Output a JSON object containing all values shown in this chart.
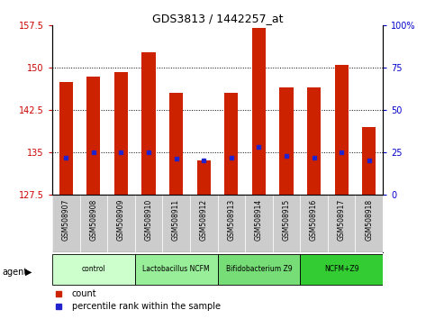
{
  "title": "GDS3813 / 1442257_at",
  "samples": [
    "GSM508907",
    "GSM508908",
    "GSM508909",
    "GSM508910",
    "GSM508911",
    "GSM508912",
    "GSM508913",
    "GSM508914",
    "GSM508915",
    "GSM508916",
    "GSM508917",
    "GSM508918"
  ],
  "count_values": [
    147.5,
    148.5,
    149.2,
    152.8,
    145.5,
    133.5,
    145.5,
    157.0,
    146.5,
    146.5,
    150.5,
    139.5
  ],
  "percentile_values": [
    22,
    25,
    25,
    25,
    21,
    20,
    22,
    28,
    23,
    22,
    25,
    20
  ],
  "ylim_left": [
    127.5,
    157.5
  ],
  "ylim_right": [
    0,
    100
  ],
  "yticks_left": [
    127.5,
    135.0,
    142.5,
    150.0,
    157.5
  ],
  "ytick_labels_left": [
    "127.5",
    "135",
    "142.5",
    "150",
    "157.5"
  ],
  "yticks_right": [
    0,
    25,
    50,
    75,
    100
  ],
  "ytick_labels_right": [
    "0",
    "25",
    "50",
    "75",
    "100%"
  ],
  "bar_color": "#cc2200",
  "percentile_color": "#2222cc",
  "agent_groups": [
    {
      "label": "control",
      "start": 0,
      "end": 2,
      "color": "#ccffcc"
    },
    {
      "label": "Lactobacillus NCFM",
      "start": 3,
      "end": 5,
      "color": "#99ee99"
    },
    {
      "label": "Bifidobacterium Z9",
      "start": 6,
      "end": 8,
      "color": "#77dd77"
    },
    {
      "label": "NCFM+Z9",
      "start": 9,
      "end": 11,
      "color": "#33cc33"
    }
  ],
  "ylabel_left_color": "#cc0000",
  "ylabel_right_color": "#0000cc",
  "tick_bg_color": "#cccccc",
  "bar_width": 0.5,
  "legend_count_color": "#cc2200",
  "legend_perc_color": "#2222cc"
}
